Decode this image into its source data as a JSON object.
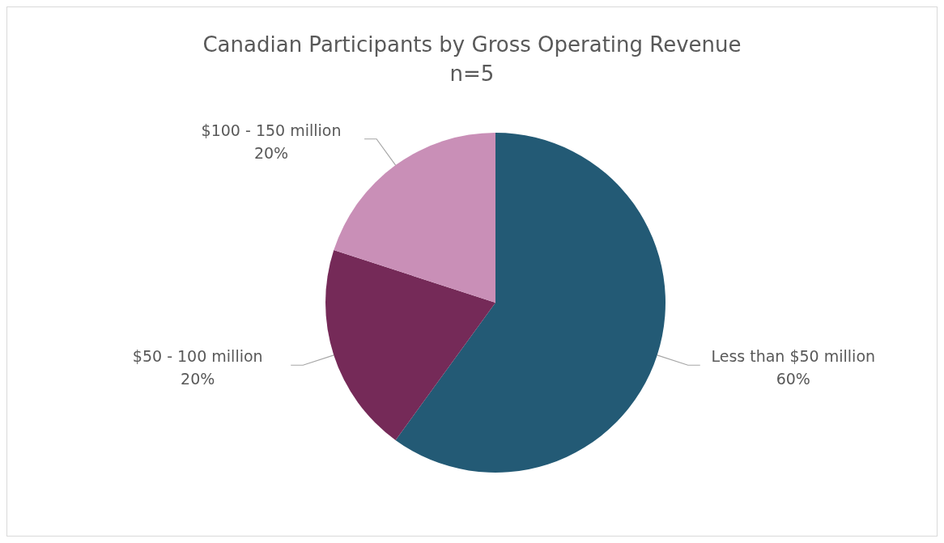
{
  "chart_data": {
    "type": "pie",
    "title": "Canadian Participants by Gross Operating Revenue",
    "subtitle": "n=5",
    "categories": [
      "Less than $50 million",
      "$50 - 100 million",
      "$100 - 150 million"
    ],
    "values": [
      60,
      20,
      20
    ],
    "colors": [
      "#235a75",
      "#752a58",
      "#c98fb7"
    ],
    "value_labels": [
      "60%",
      "20%",
      "20%"
    ]
  }
}
